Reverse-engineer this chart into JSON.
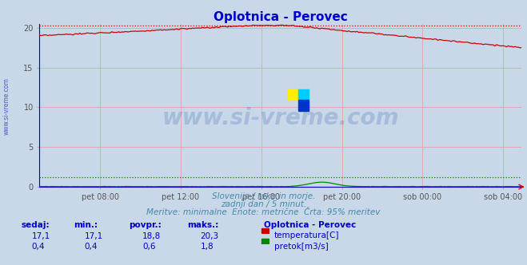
{
  "title": "Oplotnica - Perovec",
  "title_color": "#0000cc",
  "bg_color": "#c8d8e8",
  "plot_bg_color": "#c8d8e8",
  "fig_bg_color": "#c8d8e8",
  "temp_color": "#cc0000",
  "flow_color": "#008800",
  "level_color": "#0000cc",
  "text_color": "#0000cc",
  "subtitle_color": "#4488aa",
  "grid_color": "#ddaaaa",
  "ylim_min": 0,
  "ylim_max": 20.5,
  "yticks": [
    0,
    5,
    10,
    15,
    20
  ],
  "xtick_labels": [
    "pet 08:00",
    "pet 12:00",
    "pet 16:00",
    "pet 20:00",
    "sob 00:00",
    "sob 04:00"
  ],
  "xtick_positions": [
    36,
    84,
    132,
    180,
    228,
    276
  ],
  "subtitle1": "Slovenija / reke in morje.",
  "subtitle2": "zadnji dan / 5 minut.",
  "subtitle3": "Meritve: minimalne  Enote: metrične  Črta: 95% meritev",
  "table_headers": [
    "sedaj:",
    "min.:",
    "povpr.:",
    "maks.:"
  ],
  "table_row1": [
    "17,1",
    "17,1",
    "18,8",
    "20,3"
  ],
  "table_row2": [
    "0,4",
    "0,4",
    "0,6",
    "1,8"
  ],
  "legend_title": "Oplotnica - Perovec",
  "legend_items": [
    "temperatura[C]",
    "pretok[m3/s]"
  ],
  "legend_colors": [
    "#cc0000",
    "#008800"
  ],
  "temp_max_dotted": 20.3,
  "flow_max_dotted_scaled": 1.2,
  "watermark": "www.si-vreme.com"
}
